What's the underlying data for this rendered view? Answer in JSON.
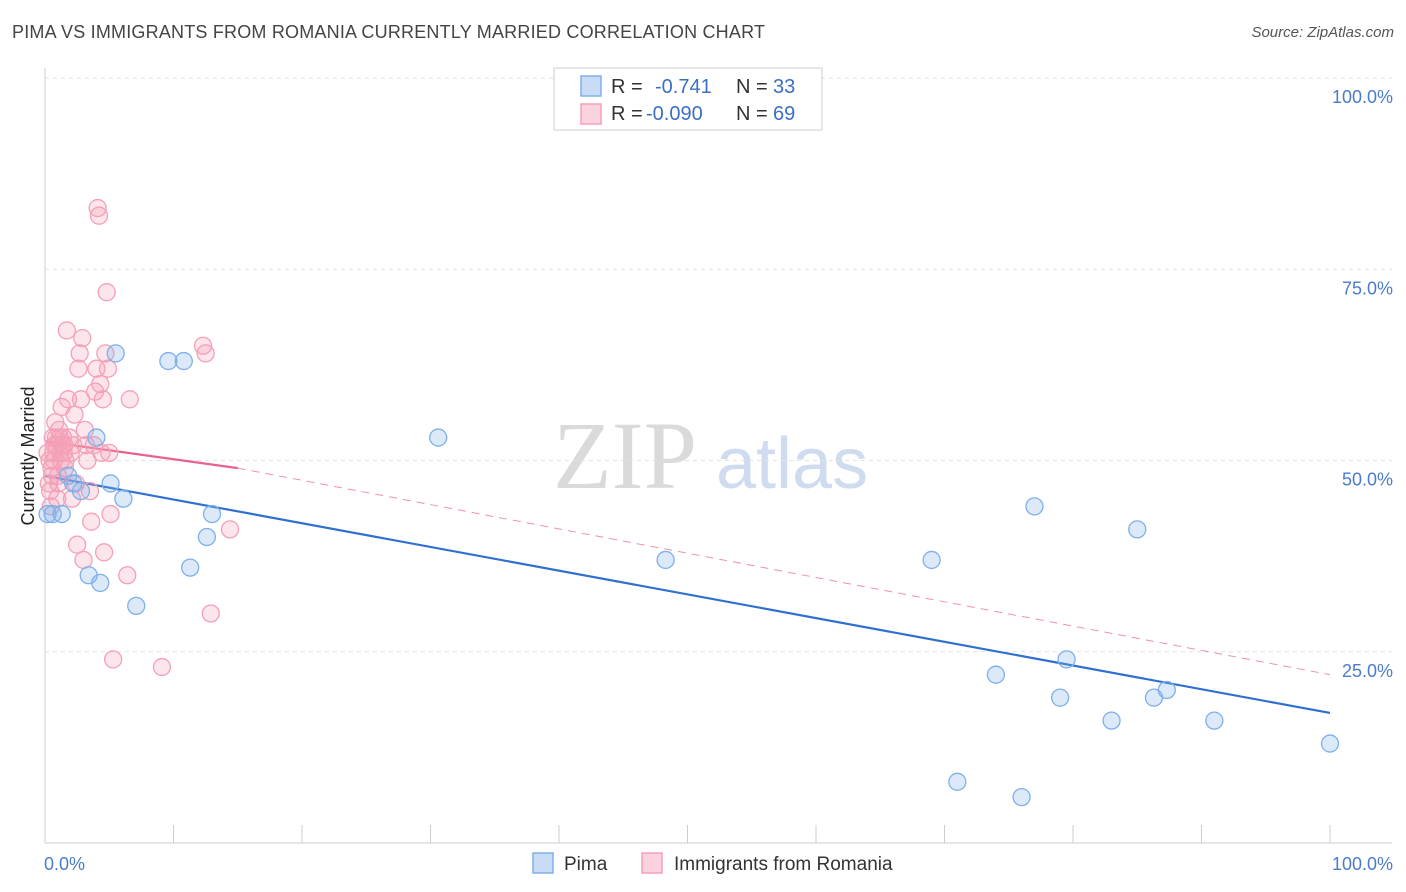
{
  "title": "PIMA VS IMMIGRANTS FROM ROMANIA CURRENTLY MARRIED CORRELATION CHART",
  "source": "Source: ZipAtlas.com",
  "watermark": {
    "zip": "ZIP",
    "atlas": "atlas"
  },
  "colors": {
    "pima": "#7fb0ea",
    "pima_line": "#2f6fcf",
    "romania": "#f4a0b8",
    "romania_line": "#e8638c",
    "tick_text": "#4a7cc9",
    "grid": "#e2e2e2"
  },
  "legend": {
    "rows": [
      {
        "r_label": "R = ",
        "r_value": "-0.741",
        "n_label": "N = ",
        "n_value": "33"
      },
      {
        "r_label": "R = ",
        "r_value": "-0.090",
        "n_label": "N = ",
        "n_value": "69"
      }
    ]
  },
  "chart_data": {
    "type": "scatter",
    "title": "PIMA VS IMMIGRANTS FROM ROMANIA CURRENTLY MARRIED CORRELATION CHART",
    "xlabel": "",
    "ylabel": "Currently Married",
    "xlim": [
      0,
      100
    ],
    "ylim": [
      0,
      100
    ],
    "x_tick_labels": [
      "0.0%",
      "100.0%"
    ],
    "y_ticks": [
      25,
      50,
      75,
      100
    ],
    "y_tick_labels": [
      "25.0%",
      "50.0%",
      "75.0%",
      "100.0%"
    ],
    "grid": true,
    "legend_position": "bottom",
    "series": [
      {
        "name": "Pima",
        "points": [
          [
            0.2,
            43
          ],
          [
            0.6,
            43
          ],
          [
            1.3,
            43
          ],
          [
            1.8,
            48
          ],
          [
            2.2,
            47
          ],
          [
            2.8,
            46
          ],
          [
            3.4,
            35
          ],
          [
            4.0,
            53
          ],
          [
            4.3,
            34
          ],
          [
            5.1,
            47
          ],
          [
            5.5,
            64
          ],
          [
            6.1,
            45
          ],
          [
            7.1,
            31
          ],
          [
            9.6,
            63
          ],
          [
            10.8,
            63
          ],
          [
            11.3,
            36
          ],
          [
            12.6,
            40
          ],
          [
            13.0,
            43
          ],
          [
            30.6,
            53
          ],
          [
            48.3,
            37
          ],
          [
            69.0,
            37
          ],
          [
            71.0,
            8
          ],
          [
            74.0,
            22
          ],
          [
            76.0,
            6
          ],
          [
            77.0,
            44
          ],
          [
            79.0,
            19
          ],
          [
            79.5,
            24
          ],
          [
            83.0,
            16
          ],
          [
            85.0,
            41
          ],
          [
            86.3,
            19
          ],
          [
            87.3,
            20
          ],
          [
            91.0,
            16
          ],
          [
            100.0,
            13
          ]
        ],
        "trend": {
          "x": [
            0,
            100
          ],
          "y": [
            48,
            17
          ]
        }
      },
      {
        "name": "Immigrants from Romania",
        "points": [
          [
            0.2,
            51
          ],
          [
            0.3,
            47
          ],
          [
            0.4,
            46
          ],
          [
            0.5,
            49
          ],
          [
            0.6,
            53
          ],
          [
            0.7,
            50
          ],
          [
            0.8,
            55
          ],
          [
            0.9,
            52
          ],
          [
            1.0,
            48
          ],
          [
            1.1,
            54
          ],
          [
            1.2,
            51
          ],
          [
            1.3,
            57
          ],
          [
            1.4,
            53
          ],
          [
            1.5,
            52
          ],
          [
            1.6,
            50
          ],
          [
            1.7,
            67
          ],
          [
            1.8,
            58
          ],
          [
            1.9,
            53
          ],
          [
            2.0,
            51
          ],
          [
            2.1,
            45
          ],
          [
            2.2,
            52
          ],
          [
            2.3,
            56
          ],
          [
            2.4,
            47
          ],
          [
            2.5,
            39
          ],
          [
            2.6,
            62
          ],
          [
            2.7,
            64
          ],
          [
            2.8,
            58
          ],
          [
            2.9,
            66
          ],
          [
            3.0,
            37
          ],
          [
            3.1,
            54
          ],
          [
            3.2,
            52
          ],
          [
            3.3,
            50
          ],
          [
            3.5,
            46
          ],
          [
            3.6,
            42
          ],
          [
            3.8,
            52
          ],
          [
            3.9,
            59
          ],
          [
            4.0,
            62
          ],
          [
            4.1,
            83
          ],
          [
            4.2,
            82
          ],
          [
            4.3,
            60
          ],
          [
            4.4,
            51
          ],
          [
            4.5,
            58
          ],
          [
            4.6,
            38
          ],
          [
            4.7,
            64
          ],
          [
            4.8,
            72
          ],
          [
            4.9,
            62
          ],
          [
            5.0,
            51
          ],
          [
            5.1,
            43
          ],
          [
            5.3,
            24
          ],
          [
            6.4,
            35
          ],
          [
            6.6,
            58
          ],
          [
            9.1,
            23
          ],
          [
            12.3,
            65
          ],
          [
            12.5,
            64
          ],
          [
            12.9,
            30
          ],
          [
            14.4,
            41
          ],
          [
            0.35,
            50
          ],
          [
            0.45,
            44
          ],
          [
            0.55,
            48
          ],
          [
            0.65,
            51
          ],
          [
            0.75,
            52
          ],
          [
            0.85,
            53
          ],
          [
            0.95,
            45
          ],
          [
            1.05,
            47
          ],
          [
            1.15,
            53
          ],
          [
            1.25,
            50
          ],
          [
            1.35,
            52
          ],
          [
            1.45,
            51
          ],
          [
            1.55,
            49
          ]
        ],
        "trend": {
          "x": [
            0,
            15
          ],
          "y": [
            52.5,
            49
          ]
        },
        "trend_extension": {
          "x": [
            15,
            100
          ],
          "y": [
            49,
            22
          ]
        }
      }
    ]
  },
  "bottom_legend": {
    "items": [
      {
        "label": "Pima"
      },
      {
        "label": "Immigrants from Romania"
      }
    ]
  }
}
